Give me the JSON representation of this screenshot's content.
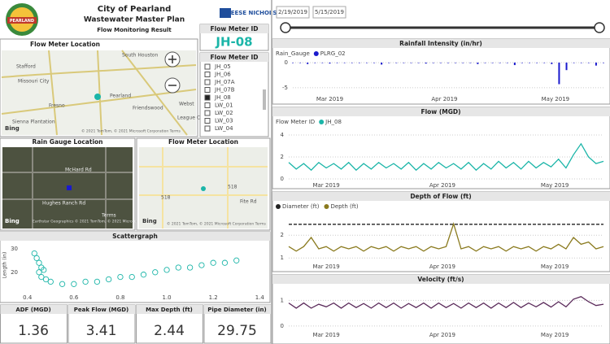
{
  "header": {
    "title": "City of Pearland",
    "subtitle": "Wastewater Master Plan",
    "caption": "Flow Monitoring Result",
    "logo_text": "PEARLAND",
    "company": "FREESE NICHOLS"
  },
  "flow_meter_card": {
    "title": "Flow Meter ID",
    "value": "JH-08"
  },
  "flow_meter_slicer": {
    "title": "Flow Meter ID",
    "items": [
      {
        "label": "JH_05",
        "checked": false
      },
      {
        "label": "JH_06",
        "checked": false
      },
      {
        "label": "JH_07A",
        "checked": false
      },
      {
        "label": "JH_07B",
        "checked": false
      },
      {
        "label": "JH_08",
        "checked": true
      },
      {
        "label": "LW_01",
        "checked": false
      },
      {
        "label": "LW_02",
        "checked": false
      },
      {
        "label": "LW_03",
        "checked": false
      },
      {
        "label": "LW_04",
        "checked": false
      }
    ]
  },
  "date_slicer": {
    "start": "2/19/2019",
    "end": "5/15/2019"
  },
  "maps": [
    {
      "title": "Flow Meter Location",
      "labels": [
        "South Houston",
        "Stafford",
        "Missouri City",
        "Pearland",
        "Friendswood",
        "Fresno",
        "Sienna Plantation",
        "Webst",
        "League C"
      ],
      "brand": "Bing",
      "attribution": "© 2021 TomTom, © 2021 Microsoft Corporation Terms"
    },
    {
      "title": "Rain Gauge Location",
      "labels": [
        "McHard Rd",
        "Hughes Ranch Rd",
        "Terms"
      ],
      "brand": "Bing",
      "attribution": "Earthstar Geographics © 2021 TomTom, © 2021 Microsoft"
    },
    {
      "title": "Flow Meter Location",
      "labels": [
        "518",
        "518",
        "Fite Rd"
      ],
      "brand": "Bing",
      "attribution": "© 2021 TomTom, © 2021 Microsoft Corporation Terms"
    }
  ],
  "kpis": [
    {
      "label": "ADF (MGD)",
      "value": 1.36
    },
    {
      "label": "Peak Flow (MGD)",
      "value": 3.41
    },
    {
      "label": "Max Depth (ft)",
      "value": 2.44
    },
    {
      "label": "Pipe Diameter (in)",
      "value": 29.75
    }
  ],
  "chart_data": [
    {
      "type": "bar",
      "title": "Rainfall Intensity (in/hr)",
      "legend_title": "Rain_Gauge",
      "series": [
        {
          "name": "PLRG_02",
          "color": "#1a1acd",
          "values": [
            0,
            0,
            -0.3,
            0,
            0,
            -0.2,
            0,
            0,
            0,
            0,
            0,
            0,
            -0.4,
            0,
            0,
            0,
            0,
            0,
            -0.2,
            0,
            0,
            0,
            0,
            0,
            0,
            -0.3,
            0,
            0,
            0,
            0,
            -0.5,
            0,
            0,
            0,
            0,
            -0.3,
            -4.3,
            -1.5,
            0,
            0,
            0,
            -0.6,
            0
          ]
        }
      ],
      "xlim": [
        0,
        42
      ],
      "xticks": [
        {
          "value": 5,
          "label": "Mar 2019"
        },
        {
          "value": 20.5,
          "label": "Apr 2019"
        },
        {
          "value": 35.5,
          "label": "May 2019"
        }
      ],
      "ylim": [
        -6,
        0.8
      ],
      "yticks": [
        0,
        -5
      ],
      "grid": true
    },
    {
      "type": "line",
      "title": "Flow (MGD)",
      "legend_title": "Flow Meter ID",
      "series": [
        {
          "name": "JH_08",
          "color": "#1bb5a8",
          "values": [
            1.5,
            0.9,
            1.4,
            0.8,
            1.5,
            1.0,
            1.4,
            0.9,
            1.5,
            0.8,
            1.4,
            0.9,
            1.5,
            1.0,
            1.4,
            0.9,
            1.5,
            0.8,
            1.4,
            0.9,
            1.5,
            1.0,
            1.4,
            0.9,
            1.5,
            0.8,
            1.4,
            0.9,
            1.6,
            1.0,
            1.5,
            0.9,
            1.6,
            1.0,
            1.5,
            1.1,
            1.8,
            1.0,
            2.2,
            3.2,
            2.0,
            1.4,
            1.6
          ]
        }
      ],
      "xlim": [
        0,
        42
      ],
      "xticks": [
        {
          "value": 5,
          "label": "Mar 2019"
        },
        {
          "value": 20.5,
          "label": "Apr 2019"
        },
        {
          "value": 35.5,
          "label": "May 2019"
        }
      ],
      "ylim": [
        0,
        4.3
      ],
      "yticks": [
        0,
        2,
        4
      ],
      "grid": true
    },
    {
      "type": "line",
      "title": "Depth of Flow (ft)",
      "series": [
        {
          "name": "Diameter (ft)",
          "color": "#222222",
          "style": "dashed",
          "values": [
            2.48,
            2.48,
            2.48,
            2.48,
            2.48,
            2.48,
            2.48,
            2.48,
            2.48,
            2.48,
            2.48,
            2.48,
            2.48,
            2.48,
            2.48,
            2.48,
            2.48,
            2.48,
            2.48,
            2.48,
            2.48,
            2.48,
            2.48,
            2.48,
            2.48,
            2.48,
            2.48,
            2.48,
            2.48,
            2.48,
            2.48,
            2.48,
            2.48,
            2.48,
            2.48,
            2.48,
            2.48,
            2.48,
            2.48,
            2.48,
            2.48,
            2.48,
            2.48
          ]
        },
        {
          "name": "Depth (ft)",
          "color": "#8a7a1e",
          "values": [
            1.5,
            1.3,
            1.5,
            1.9,
            1.4,
            1.5,
            1.3,
            1.5,
            1.4,
            1.5,
            1.3,
            1.5,
            1.4,
            1.5,
            1.3,
            1.5,
            1.4,
            1.5,
            1.3,
            1.5,
            1.4,
            1.5,
            2.5,
            1.4,
            1.5,
            1.3,
            1.5,
            1.4,
            1.5,
            1.3,
            1.5,
            1.4,
            1.5,
            1.3,
            1.5,
            1.4,
            1.6,
            1.4,
            1.9,
            1.6,
            1.7,
            1.4,
            1.5
          ]
        }
      ],
      "xlim": [
        0,
        42
      ],
      "xticks": [
        {
          "value": 5,
          "label": "Mar 2019"
        },
        {
          "value": 20.5,
          "label": "Apr 2019"
        },
        {
          "value": 35.5,
          "label": "May 2019"
        }
      ],
      "ylim": [
        0.9,
        2.9
      ],
      "yticks": [
        1,
        2
      ],
      "grid": true
    },
    {
      "type": "line",
      "title": "Velocity (ft/s)",
      "series": [
        {
          "color": "#5a2a5a",
          "values": [
            0.9,
            0.7,
            0.9,
            0.7,
            0.85,
            0.75,
            0.9,
            0.7,
            0.9,
            0.72,
            0.88,
            0.7,
            0.9,
            0.72,
            0.9,
            0.7,
            0.88,
            0.72,
            0.9,
            0.7,
            0.9,
            0.72,
            0.88,
            0.7,
            0.9,
            0.72,
            0.9,
            0.7,
            0.9,
            0.72,
            0.92,
            0.72,
            0.9,
            0.75,
            0.92,
            0.74,
            0.95,
            0.75,
            1.05,
            1.15,
            0.95,
            0.8,
            0.85
          ]
        }
      ],
      "xlim": [
        0,
        42
      ],
      "xticks": [
        {
          "value": 5,
          "label": "Mar 2019"
        },
        {
          "value": 20.5,
          "label": "Apr 2019"
        },
        {
          "value": 35.5,
          "label": "May 2019"
        }
      ],
      "ylim": [
        -0.1,
        1.3
      ],
      "yticks": [
        0,
        1
      ],
      "grid": true
    },
    {
      "type": "scatter",
      "title": "Scattergraph",
      "ylabel": "Length (in)",
      "color": "#1bb5a8",
      "x": [
        0.43,
        0.44,
        0.45,
        0.46,
        0.47,
        0.45,
        0.46,
        0.48,
        0.5,
        0.55,
        0.6,
        0.65,
        0.7,
        0.75,
        0.8,
        0.85,
        0.9,
        0.95,
        1.0,
        1.05,
        1.1,
        1.15,
        1.2,
        1.25,
        1.3
      ],
      "values": [
        28,
        26,
        24,
        22,
        21,
        20,
        18,
        17,
        16,
        15,
        15,
        16,
        16,
        17,
        18,
        18,
        19,
        20,
        21,
        22,
        22,
        23,
        24,
        24,
        25
      ],
      "xlim": [
        0.38,
        1.42
      ],
      "xticks": [
        {
          "value": 0.4,
          "label": "0.4"
        },
        {
          "value": 0.6,
          "label": "0.6"
        },
        {
          "value": 0.8,
          "label": "0.8"
        },
        {
          "value": 1,
          "label": "1.0"
        },
        {
          "value": 1.2,
          "label": "1.2"
        },
        {
          "value": 1.4,
          "label": "1.4"
        }
      ],
      "ylim": [
        12,
        32
      ],
      "yticks": [
        20,
        30
      ],
      "grid": false
    }
  ]
}
